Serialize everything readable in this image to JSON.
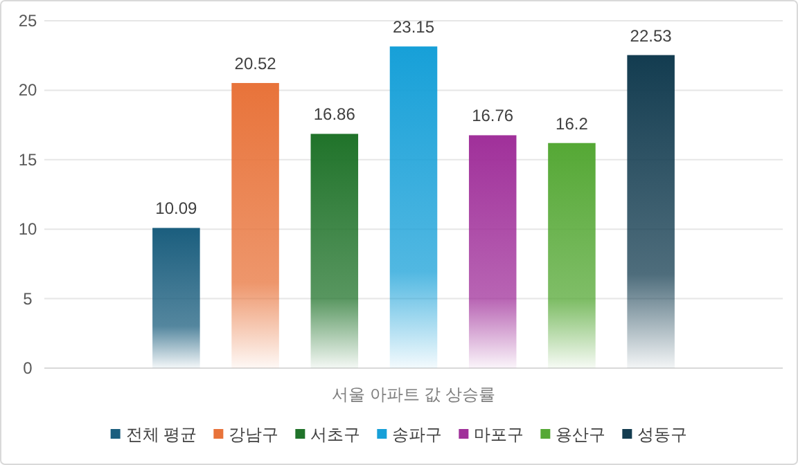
{
  "chart_data": {
    "type": "bar",
    "xlabel": "서울 아파트 값 상승률",
    "categories": [
      null
    ],
    "series": [
      {
        "name": "전체 평균",
        "color": "#1b5e7e",
        "values": [
          10.09
        ]
      },
      {
        "name": "강남구",
        "color": "#e8733a",
        "values": [
          20.52
        ]
      },
      {
        "name": "서초구",
        "color": "#20732a",
        "values": [
          16.86
        ]
      },
      {
        "name": "송파구",
        "color": "#17a0d8",
        "values": [
          23.15
        ]
      },
      {
        "name": "마포구",
        "color": "#a0309a",
        "values": [
          16.76
        ]
      },
      {
        "name": "용산구",
        "color": "#55a835",
        "values": [
          16.2
        ]
      },
      {
        "name": "성동구",
        "color": "#133c50",
        "values": [
          22.53
        ]
      }
    ],
    "ylim": [
      0,
      25
    ],
    "yticks": [
      0,
      5,
      10,
      15,
      20,
      25
    ],
    "grid": "y",
    "data_labels": true,
    "legend": "bottom"
  }
}
